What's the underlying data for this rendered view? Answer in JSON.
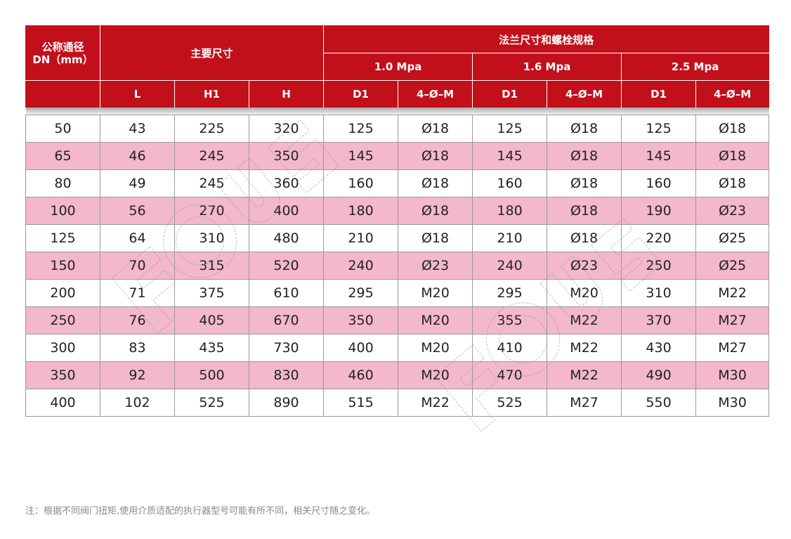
{
  "header": {
    "dn_title_line1": "公称通径",
    "dn_title_line2": "DN（mm）",
    "main_dimensions": "主要尺寸",
    "flange_group": "法兰尺寸和螺栓规格",
    "pressures": [
      "1.0 Mpa",
      "1.6 Mpa",
      "2.5 Mpa"
    ],
    "columns": [
      "L",
      "H1",
      "H",
      "D1",
      "4–Ø–M",
      "D1",
      "4–Ø–M",
      "D1",
      "4–Ø–M"
    ]
  },
  "rows": [
    [
      "50",
      "43",
      "225",
      "320",
      "125",
      "Ø18",
      "125",
      "Ø18",
      "125",
      "Ø18"
    ],
    [
      "65",
      "46",
      "245",
      "350",
      "145",
      "Ø18",
      "145",
      "Ø18",
      "145",
      "Ø18"
    ],
    [
      "80",
      "49",
      "245",
      "360",
      "160",
      "Ø18",
      "160",
      "Ø18",
      "160",
      "Ø18"
    ],
    [
      "100",
      "56",
      "270",
      "400",
      "180",
      "Ø18",
      "180",
      "Ø18",
      "190",
      "Ø23"
    ],
    [
      "125",
      "64",
      "310",
      "480",
      "210",
      "Ø18",
      "210",
      "Ø18",
      "220",
      "Ø25"
    ],
    [
      "150",
      "70",
      "315",
      "520",
      "240",
      "Ø23",
      "240",
      "Ø23",
      "250",
      "Ø25"
    ],
    [
      "200",
      "71",
      "375",
      "610",
      "295",
      "M20",
      "295",
      "M20",
      "310",
      "M22"
    ],
    [
      "250",
      "76",
      "405",
      "670",
      "350",
      "M20",
      "355",
      "M22",
      "370",
      "M27"
    ],
    [
      "300",
      "83",
      "435",
      "730",
      "400",
      "M20",
      "410",
      "M22",
      "430",
      "M27"
    ],
    [
      "350",
      "92",
      "500",
      "830",
      "460",
      "M20",
      "470",
      "M22",
      "490",
      "M30"
    ],
    [
      "400",
      "102",
      "525",
      "890",
      "515",
      "M22",
      "525",
      "M27",
      "550",
      "M30"
    ]
  ],
  "footnote": "注：根据不同阀门扭矩,使用介质适配的执行器型号可能有所不同，相关尺寸随之变化。",
  "colors": {
    "header_red": "#c2101b",
    "pink_row": "#f3b8c9",
    "white_row": "#ffffff"
  }
}
